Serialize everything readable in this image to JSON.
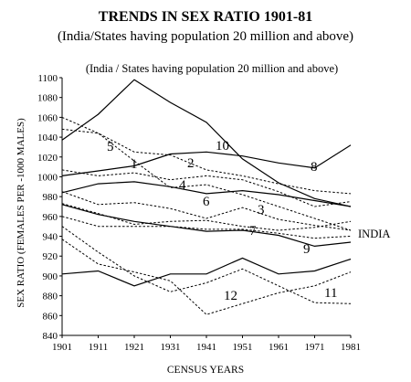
{
  "title": "TRENDS IN SEX RATIO 1901-81",
  "subtitle": "(India/States having population 20 million and above)",
  "chart_data": {
    "type": "line",
    "title": "TRENDS IN SEX RATIO 1901-81",
    "inner_note": "(India / States having population 20 million and above)",
    "xlabel": "CENSUS YEARS",
    "ylabel": "SEX RATIO (FEMALES PER -1000 MALES)",
    "x": [
      1901,
      1911,
      1921,
      1931,
      1941,
      1951,
      1961,
      1971,
      1981
    ],
    "x_ticks": [
      "1901",
      "1911",
      "1921",
      "1931",
      "1941",
      "1951",
      "1961",
      "1971",
      "1981"
    ],
    "y_ticks": [
      840,
      860,
      880,
      900,
      920,
      940,
      960,
      980,
      1000,
      1020,
      1040,
      1060,
      1080,
      1100
    ],
    "ylim": [
      840,
      1100
    ],
    "grid": false,
    "series_labels": [
      "1",
      "2",
      "3",
      "4",
      "5",
      "6",
      "7",
      "8",
      "9",
      "10",
      "11",
      "12",
      "INDIA"
    ],
    "series": [
      {
        "values": [
          1037,
          1063,
          1098,
          1075,
          1055,
          1018,
          994,
          978,
          970
        ],
        "style": "solid"
      },
      {
        "values": [
          1001,
          1006,
          1011,
          1023,
          1025,
          1021,
          1014,
          1009,
          1032
        ],
        "style": "solid"
      },
      {
        "values": [
          1060,
          1044,
          1025,
          1022,
          1007,
          1001,
          993,
          986,
          983
        ],
        "style": "dashed"
      },
      {
        "values": [
          1048,
          1044,
          1016,
          989,
          992,
          982,
          970,
          958,
          946
        ],
        "style": "dashed"
      },
      {
        "values": [
          984,
          993,
          995,
          990,
          983,
          986,
          982,
          976,
          970
        ],
        "style": "solid"
      },
      {
        "values": [
          1007,
          1001,
          1004,
          997,
          1001,
          997,
          985,
          970,
          975
        ],
        "style": "dashed"
      },
      {
        "values": [
          985,
          972,
          974,
          968,
          958,
          969,
          957,
          951,
          946
        ],
        "style": "dashed"
      },
      {
        "values": [
          973,
          963,
          952,
          955,
          956,
          950,
          946,
          949,
          955
        ],
        "style": "dashed"
      },
      {
        "values": [
          960,
          950,
          950,
          950,
          947,
          947,
          943,
          938,
          940
        ],
        "style": "dashed"
      },
      {
        "values": [
          972,
          962,
          955,
          950,
          945,
          946,
          941,
          930,
          934
        ],
        "style": "solid"
      },
      {
        "values": [
          902,
          905,
          890,
          902,
          902,
          918,
          902,
          905,
          917
        ],
        "style": "solid"
      },
      {
        "values": [
          950,
          924,
          900,
          884,
          893,
          907,
          890,
          873,
          872
        ],
        "style": "dashed"
      },
      {
        "values": [
          937,
          912,
          904,
          895,
          861,
          872,
          883,
          890,
          904
        ],
        "style": "dashed"
      }
    ]
  }
}
